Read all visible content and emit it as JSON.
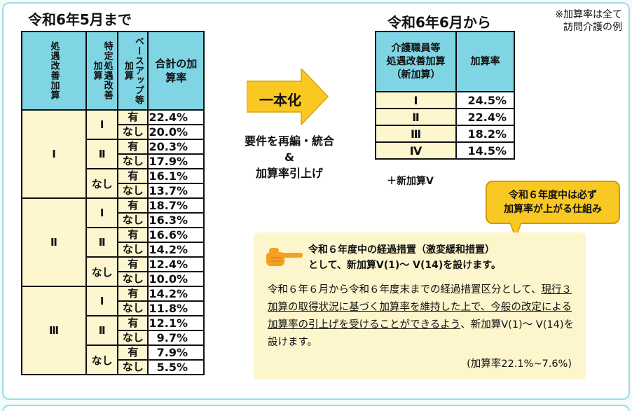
{
  "titles": {
    "left": "令和6年5月まで",
    "right": "令和6年6月から",
    "note_line1": "※加算率は全て",
    "note_line2": "訪問介護の例"
  },
  "left_table": {
    "headers": [
      "処遇改善加算",
      "特定処遇改善加算",
      "ベースアップ等加算",
      "合計の加算率"
    ],
    "groups": [
      {
        "level": "Ⅰ",
        "subs": [
          {
            "sub": "Ⅰ",
            "rows": [
              {
                "yn": "有",
                "rate": "22.4%"
              },
              {
                "yn": "なし",
                "rate": "20.0%"
              }
            ]
          },
          {
            "sub": "Ⅱ",
            "rows": [
              {
                "yn": "有",
                "rate": "20.3%"
              },
              {
                "yn": "なし",
                "rate": "17.9%"
              }
            ]
          },
          {
            "sub": "なし",
            "rows": [
              {
                "yn": "有",
                "rate": "16.1%"
              },
              {
                "yn": "なし",
                "rate": "13.7%"
              }
            ]
          }
        ]
      },
      {
        "level": "Ⅱ",
        "subs": [
          {
            "sub": "Ⅰ",
            "rows": [
              {
                "yn": "有",
                "rate": "18.7%"
              },
              {
                "yn": "なし",
                "rate": "16.3%"
              }
            ]
          },
          {
            "sub": "Ⅱ",
            "rows": [
              {
                "yn": "有",
                "rate": "16.6%"
              },
              {
                "yn": "なし",
                "rate": "14.2%"
              }
            ]
          },
          {
            "sub": "なし",
            "rows": [
              {
                "yn": "有",
                "rate": "12.4%"
              },
              {
                "yn": "なし",
                "rate": "10.0%"
              }
            ]
          }
        ]
      },
      {
        "level": "Ⅲ",
        "subs": [
          {
            "sub": "Ⅰ",
            "rows": [
              {
                "yn": "有",
                "rate": "14.2%"
              },
              {
                "yn": "なし",
                "rate": "11.8%"
              }
            ]
          },
          {
            "sub": "Ⅱ",
            "rows": [
              {
                "yn": "有",
                "rate": "12.1%"
              },
              {
                "yn": "なし",
                "rate": "9.7%"
              }
            ]
          },
          {
            "sub": "なし",
            "rows": [
              {
                "yn": "有",
                "rate": "7.9%"
              },
              {
                "yn": "なし",
                "rate": "5.5%"
              }
            ]
          }
        ]
      }
    ]
  },
  "arrow": {
    "label": "一本化",
    "line1": "要件を再編・統合",
    "line2": "&",
    "line3": "加算率引上げ"
  },
  "right_table": {
    "header_line1": "介護職員等",
    "header_line2": "処遇改善加算",
    "header_line3": "（新加算）",
    "header_rate": "加算率",
    "rows": [
      {
        "level": "Ⅰ",
        "rate": "24.5%"
      },
      {
        "level": "Ⅱ",
        "rate": "22.4%"
      },
      {
        "level": "Ⅲ",
        "rate": "18.2%"
      },
      {
        "level": "Ⅳ",
        "rate": "14.5%"
      }
    ]
  },
  "plus_v": "＋新加算Ⅴ",
  "callout": {
    "line1": "令和６年度中は必ず",
    "line2": "加算率が上がる仕組み"
  },
  "info": {
    "head_line1": "令和６年度中の経過措置（激変緩和措置）",
    "head_line2": "として、新加算Ⅴ(1)～ Ⅴ(14)を設けます。",
    "body_plain1": "令和６年６月から令和６年度末までの経過措置区分として、",
    "body_underlined": "現行３加算の取得状況に基づく加算率を維持した上で、今般の改定による加算率の引上げを受けることができるよう",
    "body_plain2": "、新加算Ⅴ(1)～ Ⅴ(14)を設けます。",
    "range": "(加算率22.1%~7.6%)"
  },
  "colors": {
    "header_cyan": "#7fd5e3",
    "cell_cream": "#fdf6cf",
    "arrow_yellow": "#f9c823",
    "panel_border": "#9fdbe3"
  }
}
